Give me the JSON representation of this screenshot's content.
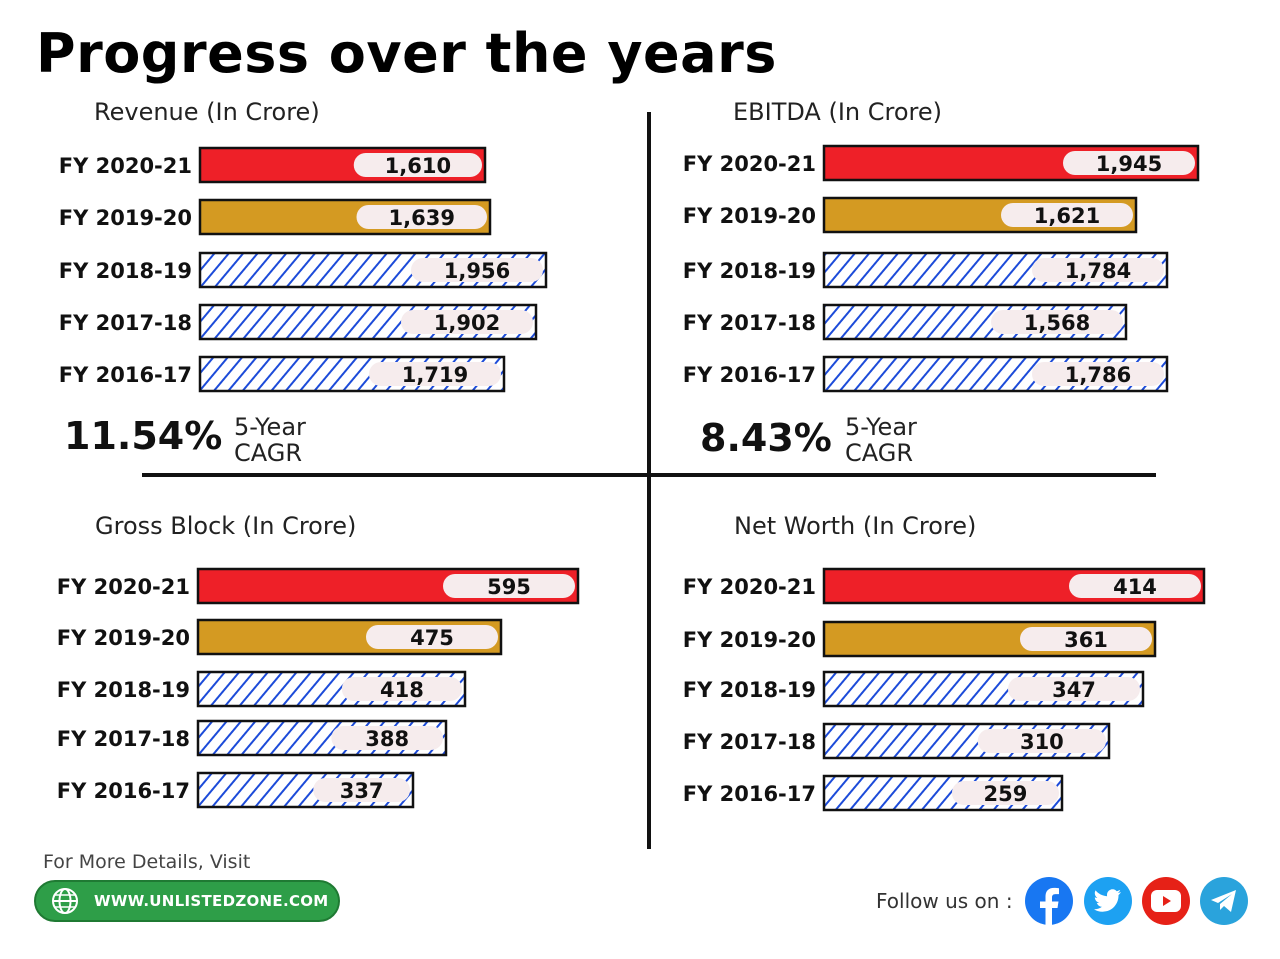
{
  "title": "Progress over the years",
  "colors": {
    "current": "#ee2028",
    "previous": "#d49a22",
    "hatch": "#1c4bd9",
    "pill": "#f6eced"
  },
  "chart_data": [
    {
      "type": "bar",
      "title": "Revenue (In Crore)",
      "categories": [
        "FY 2020-21",
        "FY 2019-20",
        "FY 2018-19",
        "FY 2017-18",
        "FY 2016-17"
      ],
      "values": [
        1610,
        1639,
        1956,
        1902,
        1719
      ],
      "value_labels": [
        "1,610",
        "1,639",
        "1,956",
        "1,902",
        "1,719"
      ],
      "cagr": {
        "value": "11.54%",
        "label_line1": "5-Year",
        "label_line2": "CAGR"
      }
    },
    {
      "type": "bar",
      "title": "EBITDA (In Crore)",
      "categories": [
        "FY 2020-21",
        "FY 2019-20",
        "FY 2018-19",
        "FY 2017-18",
        "FY 2016-17"
      ],
      "values": [
        1945,
        1621,
        1784,
        1568,
        1786
      ],
      "value_labels": [
        "1,945",
        "1,621",
        "1,784",
        "1,568",
        "1,786"
      ],
      "cagr": {
        "value": "8.43%",
        "label_line1": "5-Year",
        "label_line2": "CAGR"
      }
    },
    {
      "type": "bar",
      "title": "Gross Block (In Crore)",
      "categories": [
        "FY 2020-21",
        "FY 2019-20",
        "FY 2018-19",
        "FY 2017-18",
        "FY 2016-17"
      ],
      "values": [
        595,
        475,
        418,
        388,
        337
      ],
      "value_labels": [
        "595",
        "475",
        "418",
        "388",
        "337"
      ]
    },
    {
      "type": "bar",
      "title": "Net Worth (In Crore)",
      "categories": [
        "FY 2020-21",
        "FY 2019-20",
        "FY 2018-19",
        "FY 2017-18",
        "FY 2016-17"
      ],
      "values": [
        414,
        361,
        347,
        310,
        259
      ],
      "value_labels": [
        "414",
        "361",
        "347",
        "310",
        "259"
      ]
    }
  ],
  "footer": {
    "details_text": "For More Details, Visit",
    "website": "WWW.UNLISTEDZONE.COM",
    "follow_text": "Follow us on :",
    "social": [
      "facebook-icon",
      "twitter-icon",
      "youtube-icon",
      "telegram-icon"
    ]
  }
}
